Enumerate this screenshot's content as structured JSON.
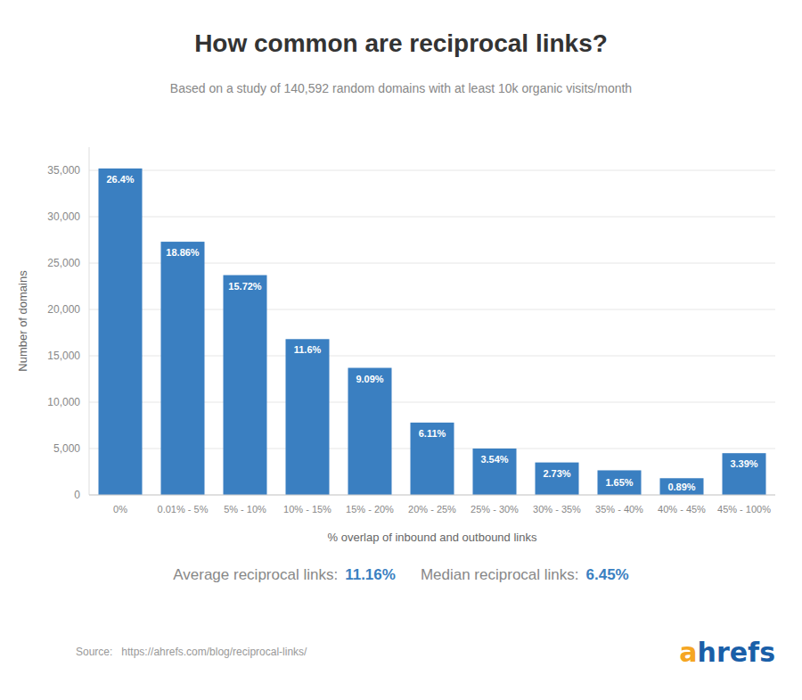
{
  "chart_data": {
    "type": "bar",
    "title": "How common are reciprocal links?",
    "subtitle": "Based on a study of 140,592 random domains with at least 10k organic visits/month",
    "categories": [
      "0%",
      "0.01% - 5%",
      "5% - 10%",
      "10% - 15%",
      "15% - 20%",
      "20% - 25%",
      "25% - 30%",
      "30% - 35%",
      "35% - 40%",
      "40% - 45%",
      "45% - 100%"
    ],
    "values": [
      35200,
      27300,
      23700,
      16800,
      13700,
      7800,
      5000,
      3500,
      2650,
      1800,
      4500
    ],
    "percentages": [
      "26.4%",
      "18.86%",
      "15.72%",
      "11.6%",
      "9.09%",
      "6.11%",
      "3.54%",
      "2.73%",
      "1.65%",
      "0.89%",
      "3.39%"
    ],
    "color": "#3a7fc1",
    "ylabel": "Number of domains",
    "xlabel": "% overlap of inbound and outbound links",
    "ylim": [
      0,
      37500
    ],
    "yticks": [
      0,
      {
        "value": 5000,
        "label": "5,000"
      },
      {
        "value": 10000,
        "label": "10,000"
      },
      {
        "value": 15000,
        "label": "15,000"
      },
      {
        "value": 20000,
        "label": "20,000"
      },
      {
        "value": 25000,
        "label": "25,000"
      },
      {
        "value": 30000,
        "label": "30,000"
      },
      {
        "value": 35000,
        "label": "35,000"
      }
    ],
    "grid": true,
    "annotations": [
      "Average reciprocal links:",
      "11.16%",
      "Median reciprocal links:",
      "6.45%"
    ],
    "source": "Source:   https://ahrefs.com/blog/reciprocal-links/",
    "logo": [
      "a",
      "hrefs"
    ]
  }
}
